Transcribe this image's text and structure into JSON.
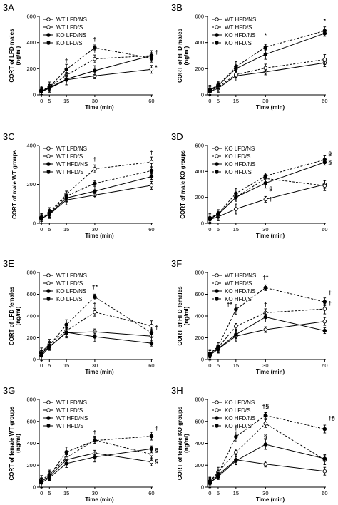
{
  "chart_data": [
    {
      "panel": "3A",
      "type": "line",
      "ylabel": "CORT of LFD males\n(ng/ml)",
      "xlabel": "Time (min)",
      "x": [
        0,
        5,
        15,
        30,
        60
      ],
      "xticks": [
        "0",
        "5",
        "15",
        "30",
        "60"
      ],
      "ylim": [
        0,
        600
      ],
      "yticks": [
        "0",
        "200",
        "400",
        "600"
      ],
      "legend_position": "top-left",
      "series": [
        {
          "name": "WT LFD/NS",
          "values": [
            25,
            50,
            115,
            145,
            195
          ],
          "marker": "open",
          "line": "solid"
        },
        {
          "name": "WT LFD/S",
          "values": [
            30,
            60,
            150,
            275,
            300
          ],
          "marker": "open",
          "line": "dashed"
        },
        {
          "name": "KO LFD/NS",
          "values": [
            30,
            55,
            120,
            185,
            300
          ],
          "marker": "filled",
          "line": "solid"
        },
        {
          "name": "KO LFD/S",
          "values": [
            35,
            60,
            195,
            360,
            280
          ],
          "marker": "filled",
          "line": "dashed"
        }
      ],
      "annotations": [
        {
          "text": "†",
          "x": 15,
          "y": 245
        },
        {
          "text": "†",
          "x": 30,
          "y": 410
        },
        {
          "text": "†",
          "x": 30,
          "y": 325
        },
        {
          "text": "†",
          "x": 60,
          "y": 310,
          "side": "right"
        },
        {
          "text": "*",
          "x": 60,
          "y": 195,
          "side": "right"
        }
      ]
    },
    {
      "panel": "3B",
      "type": "line",
      "ylabel": "CORT of HFD males\n(ng/ml)",
      "xlabel": "Time (min)",
      "x": [
        0,
        5,
        15,
        30,
        60
      ],
      "xticks": [
        "0",
        "5",
        "15",
        "30",
        "60"
      ],
      "ylim": [
        0,
        600
      ],
      "yticks": [
        "0",
        "200",
        "400",
        "600"
      ],
      "legend_position": "top-left",
      "series": [
        {
          "name": "WT HFD/NS",
          "values": [
            25,
            50,
            145,
            175,
            245
          ],
          "marker": "open",
          "line": "solid"
        },
        {
          "name": "WT HFD/S",
          "values": [
            30,
            60,
            155,
            205,
            270
          ],
          "marker": "open",
          "line": "dashed"
        },
        {
          "name": "KO HFD/NS",
          "values": [
            35,
            70,
            200,
            310,
            470
          ],
          "marker": "filled",
          "line": "solid"
        },
        {
          "name": "KO HFD/S",
          "values": [
            40,
            75,
            215,
            365,
            490
          ],
          "marker": "filled",
          "line": "dashed"
        }
      ],
      "annotations": [
        {
          "text": "*",
          "x": 30,
          "y": 440
        },
        {
          "text": "*",
          "x": 60,
          "y": 550
        }
      ]
    },
    {
      "panel": "3C",
      "type": "line",
      "ylabel": "CORT of male WT groups",
      "xlabel": "Time (min)",
      "x": [
        0,
        5,
        15,
        30,
        60
      ],
      "xticks": [
        "0",
        "5",
        "15",
        "30",
        "60"
      ],
      "ylim": [
        0,
        400
      ],
      "yticks": [
        "0",
        "200",
        "400"
      ],
      "legend_position": "top-left",
      "series": [
        {
          "name": "WT LFD/NS",
          "values": [
            25,
            45,
            120,
            145,
            195
          ],
          "marker": "open",
          "line": "solid"
        },
        {
          "name": "WT LFD/S",
          "values": [
            30,
            55,
            150,
            280,
            315
          ],
          "marker": "open",
          "line": "dashed"
        },
        {
          "name": "WT HFD/NS",
          "values": [
            25,
            48,
            130,
            165,
            240
          ],
          "marker": "filled",
          "line": "solid"
        },
        {
          "name": "WT HFD/S",
          "values": [
            30,
            52,
            140,
            205,
            270
          ],
          "marker": "filled",
          "line": "dashed"
        }
      ],
      "annotations": [
        {
          "text": "†",
          "x": 30,
          "y": 320
        },
        {
          "text": "†",
          "x": 60,
          "y": 355
        }
      ]
    },
    {
      "panel": "3D",
      "type": "line",
      "ylabel": "CORT of male KO groups",
      "xlabel": "Time (min)",
      "x": [
        0,
        5,
        15,
        30,
        60
      ],
      "xticks": [
        "0",
        "5",
        "15",
        "30",
        "60"
      ],
      "ylim": [
        0,
        600
      ],
      "yticks": [
        "0",
        "200",
        "400",
        "600"
      ],
      "legend_position": "top-left",
      "series": [
        {
          "name": "KO LFD/NS",
          "values": [
            30,
            50,
            110,
            185,
            300
          ],
          "marker": "open",
          "line": "solid"
        },
        {
          "name": "KO LFD/S",
          "values": [
            35,
            65,
            200,
            345,
            290
          ],
          "marker": "open",
          "line": "dashed"
        },
        {
          "name": "KO HFD/NS",
          "values": [
            35,
            70,
            200,
            310,
            470
          ],
          "marker": "filled",
          "line": "solid"
        },
        {
          "name": "KO HFD/S",
          "values": [
            40,
            75,
            230,
            365,
            490
          ],
          "marker": "filled",
          "line": "dashed"
        }
      ],
      "annotations": [
        {
          "text": "§",
          "x": 30,
          "y": 250,
          "side": "right"
        },
        {
          "text": "†",
          "x": 30,
          "y": 170,
          "side": "right"
        },
        {
          "text": "§",
          "x": 60,
          "y": 520,
          "side": "right"
        },
        {
          "text": "§",
          "x": 60,
          "y": 455,
          "side": "right"
        }
      ]
    },
    {
      "panel": "3E",
      "type": "line",
      "ylabel": "CORT of LFD females\n(ng/ml)",
      "xlabel": "Time (min)",
      "x": [
        0,
        5,
        15,
        30,
        60
      ],
      "xticks": [
        "0",
        "5",
        "15",
        "30",
        "60"
      ],
      "ylim": [
        0,
        800
      ],
      "yticks": [
        "0",
        "200",
        "400",
        "600",
        "800"
      ],
      "legend_position": "top-left",
      "series": [
        {
          "name": "WT LFD/NS",
          "values": [
            55,
            120,
            245,
            255,
            215
          ],
          "marker": "open",
          "line": "solid"
        },
        {
          "name": "WT LFD/S",
          "values": [
            70,
            140,
            265,
            435,
            310
          ],
          "marker": "open",
          "line": "dashed"
        },
        {
          "name": "KO LFD/NS",
          "values": [
            35,
            115,
            250,
            210,
            150
          ],
          "marker": "filled",
          "line": "solid"
        },
        {
          "name": "KO LFD/S",
          "values": [
            60,
            130,
            320,
            575,
            245
          ],
          "marker": "filled",
          "line": "dashed"
        }
      ],
      "annotations": [
        {
          "text": "†*",
          "x": 30,
          "y": 650
        },
        {
          "text": "†",
          "x": 30,
          "y": 490
        },
        {
          "text": "†",
          "x": 60,
          "y": 280,
          "side": "right"
        }
      ]
    },
    {
      "panel": "3F",
      "type": "line",
      "ylabel": "CORT of HFD females\n(ng/ml)",
      "xlabel": "Time (min)",
      "x": [
        0,
        5,
        15,
        30,
        60
      ],
      "xticks": [
        "0",
        "5",
        "15",
        "30",
        "60"
      ],
      "ylim": [
        0,
        800
      ],
      "yticks": [
        "0",
        "200",
        "400",
        "600",
        "800"
      ],
      "legend_position": "top-left",
      "series": [
        {
          "name": "WT HFD/NS",
          "values": [
            40,
            95,
            215,
            275,
            350
          ],
          "marker": "open",
          "line": "solid"
        },
        {
          "name": "WT HFD/S",
          "values": [
            55,
            110,
            305,
            430,
            465
          ],
          "marker": "open",
          "line": "dashed"
        },
        {
          "name": "KO HFD/NS",
          "values": [
            40,
            100,
            230,
            390,
            265
          ],
          "marker": "filled",
          "line": "solid"
        },
        {
          "name": "KO HFD/S",
          "values": [
            55,
            120,
            460,
            660,
            530
          ],
          "marker": "filled",
          "line": "dashed"
        }
      ],
      "annotations": [
        {
          "text": "†*",
          "x": 30,
          "y": 735
        },
        {
          "text": "†*",
          "x": 15,
          "y": 490,
          "side": "left"
        },
        {
          "text": "†",
          "x": 30,
          "y": 490
        },
        {
          "text": "†",
          "x": 60,
          "y": 595,
          "side": "right"
        },
        {
          "text": "†",
          "x": 60,
          "y": 500,
          "side": "right"
        }
      ]
    },
    {
      "panel": "3G",
      "type": "line",
      "ylabel": "CORT of female WT groups\n(ng/ml)",
      "xlabel": "Time (min)",
      "x": [
        0,
        5,
        15,
        30,
        60
      ],
      "xticks": [
        "0",
        "5",
        "15",
        "30",
        "60"
      ],
      "ylim": [
        0,
        800
      ],
      "yticks": [
        "0",
        "200",
        "400",
        "600",
        "800"
      ],
      "legend_position": "top-left",
      "series": [
        {
          "name": "WT LFD/NS",
          "values": [
            55,
            95,
            250,
            310,
            230
          ],
          "marker": "open",
          "line": "solid"
        },
        {
          "name": "WT LFD/S",
          "values": [
            70,
            110,
            270,
            430,
            300
          ],
          "marker": "open",
          "line": "dashed"
        },
        {
          "name": "WT HFD/NS",
          "values": [
            40,
            85,
            215,
            275,
            350
          ],
          "marker": "filled",
          "line": "solid"
        },
        {
          "name": "WT HFD/S",
          "values": [
            55,
            105,
            320,
            425,
            465
          ],
          "marker": "filled",
          "line": "dashed"
        }
      ],
      "annotations": [
        {
          "text": "†",
          "x": 30,
          "y": 480
        },
        {
          "text": "†",
          "x": 60,
          "y": 520,
          "side": "right"
        },
        {
          "text": "§",
          "x": 60,
          "y": 320,
          "side": "right"
        },
        {
          "text": "§",
          "x": 60,
          "y": 215,
          "side": "right"
        }
      ]
    },
    {
      "panel": "3H",
      "type": "line",
      "ylabel": "CORT of female KO groups\n(ng/ml)",
      "xlabel": "Time (min)",
      "x": [
        0,
        5,
        15,
        30,
        60
      ],
      "xticks": [
        "0",
        "5",
        "15",
        "30",
        "60"
      ],
      "ylim": [
        0,
        800
      ],
      "yticks": [
        "0",
        "200",
        "400",
        "600",
        "800"
      ],
      "legend_position": "top-left",
      "series": [
        {
          "name": "KO LFD/NS",
          "values": [
            35,
            110,
            250,
            210,
            145
          ],
          "marker": "open",
          "line": "solid"
        },
        {
          "name": "KO LFD/S",
          "values": [
            55,
            135,
            320,
            580,
            250
          ],
          "marker": "open",
          "line": "dashed"
        },
        {
          "name": "KO HFD/NS",
          "values": [
            40,
            95,
            240,
            390,
            260
          ],
          "marker": "filled",
          "line": "solid"
        },
        {
          "name": "KO HFD/S",
          "values": [
            55,
            120,
            460,
            655,
            530
          ],
          "marker": "filled",
          "line": "dashed"
        }
      ],
      "annotations": [
        {
          "text": "†§",
          "x": 30,
          "y": 720
        },
        {
          "text": "†",
          "x": 30,
          "y": 650
        },
        {
          "text": "†",
          "x": 15,
          "y": 520
        },
        {
          "text": "§",
          "x": 30,
          "y": 445
        },
        {
          "text": "†§",
          "x": 60,
          "y": 610,
          "side": "right"
        }
      ]
    }
  ]
}
